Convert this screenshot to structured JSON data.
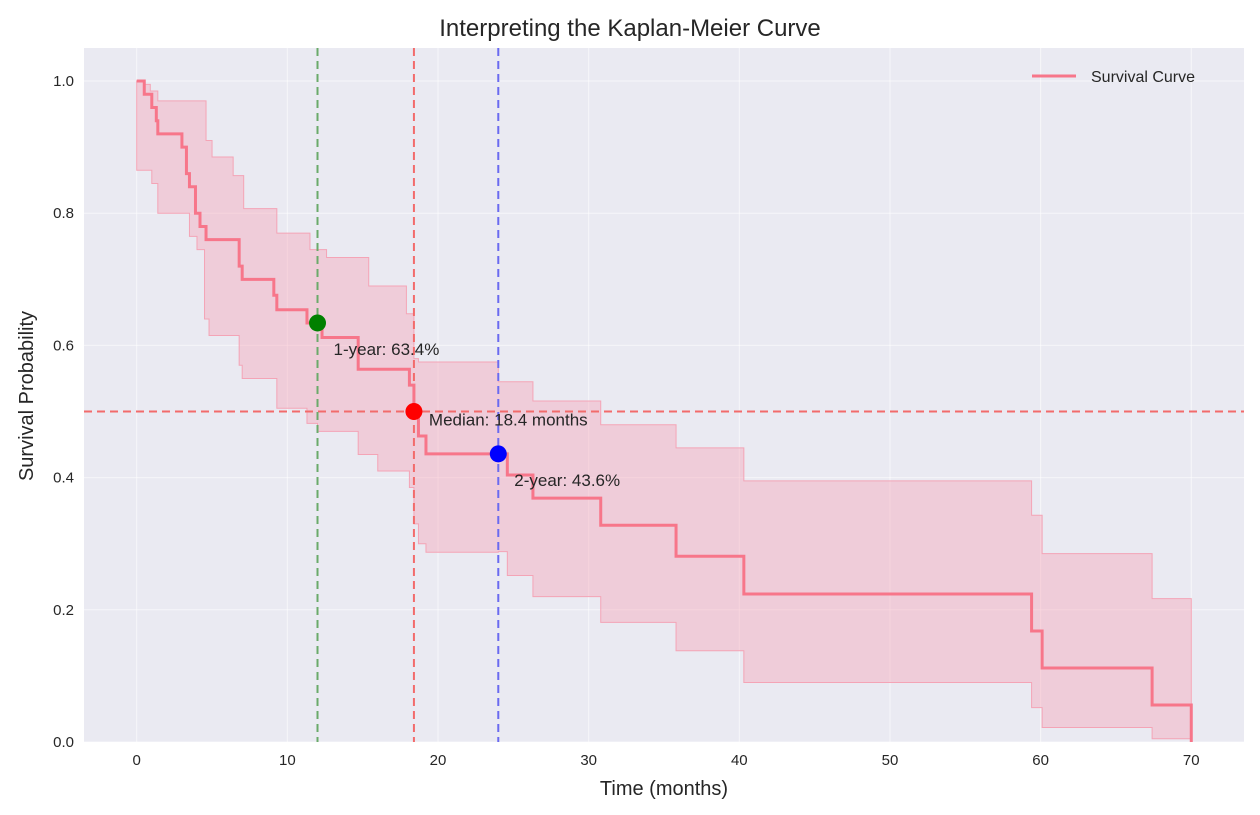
{
  "chart_data": {
    "type": "line",
    "subtype": "kaplan-meier-step",
    "title": "Interpreting the Kaplan-Meier Curve",
    "xlabel": "Time (months)",
    "ylabel": "Survival Probability",
    "xlim": [
      -3.5,
      73.5
    ],
    "ylim": [
      0.0,
      1.05
    ],
    "xticks": [
      0,
      10,
      20,
      30,
      40,
      50,
      60,
      70
    ],
    "yticks": [
      0.0,
      0.2,
      0.4,
      0.6,
      0.8,
      1.0
    ],
    "xtick_labels": [
      "0",
      "10",
      "20",
      "30",
      "40",
      "50",
      "60",
      "70"
    ],
    "ytick_labels": [
      "0.0",
      "0.2",
      "0.4",
      "0.6",
      "0.8",
      "1.0"
    ],
    "grid": true,
    "legend": {
      "position": "top-right",
      "entries": [
        {
          "label": "Survival Curve",
          "color": "#f7768a"
        }
      ]
    },
    "series": [
      {
        "name": "Survival Curve",
        "color": "#f7768a",
        "step": "post",
        "x": [
          0,
          0.5,
          1.0,
          1.3,
          1.4,
          3.0,
          3.3,
          3.5,
          3.9,
          4.2,
          4.6,
          6.8,
          7.0,
          9.1,
          9.3,
          11.3,
          12.0,
          12.3,
          14.7,
          18.1,
          18.4,
          18.7,
          19.2,
          24.0,
          24.6,
          26.3,
          30.8,
          35.8,
          40.3,
          59.4,
          60.1,
          67.4,
          70.0
        ],
        "y": [
          1.0,
          0.98,
          0.96,
          0.94,
          0.92,
          0.9,
          0.86,
          0.84,
          0.8,
          0.78,
          0.76,
          0.72,
          0.7,
          0.676,
          0.654,
          0.634,
          0.634,
          0.612,
          0.564,
          0.54,
          0.5,
          0.463,
          0.436,
          0.436,
          0.404,
          0.369,
          0.328,
          0.281,
          0.224,
          0.168,
          0.112,
          0.056,
          0.0
        ]
      }
    ],
    "confidence_band": {
      "color": "#f7768a",
      "upper": {
        "x": [
          0,
          0.5,
          0.9,
          1.4,
          4.6,
          5.0,
          6.4,
          7.1,
          9.3,
          11.5,
          12.6,
          15.4,
          17.9,
          18.4,
          18.7,
          24.0,
          26.3,
          30.8,
          35.8,
          40.3,
          59.4,
          60.1,
          67.4,
          70.0
        ],
        "y": [
          1.0,
          0.995,
          0.985,
          0.97,
          0.91,
          0.885,
          0.857,
          0.807,
          0.77,
          0.745,
          0.733,
          0.69,
          0.648,
          0.58,
          0.575,
          0.545,
          0.516,
          0.48,
          0.445,
          0.395,
          0.343,
          0.285,
          0.217,
          0.217
        ]
      },
      "lower": {
        "x": [
          0.5,
          1.0,
          1.4,
          3.5,
          4.0,
          4.5,
          4.8,
          6.8,
          7.0,
          9.3,
          11.3,
          12.0,
          14.7,
          16.0,
          18.1,
          18.4,
          18.7,
          19.2,
          24.0,
          24.6,
          26.3,
          30.8,
          35.8,
          40.3,
          59.4,
          60.1,
          67.4,
          70.0
        ],
        "y": [
          0.865,
          0.845,
          0.8,
          0.765,
          0.745,
          0.64,
          0.615,
          0.57,
          0.55,
          0.505,
          0.482,
          0.47,
          0.435,
          0.41,
          0.385,
          0.33,
          0.3,
          0.287,
          0.288,
          0.252,
          0.22,
          0.181,
          0.138,
          0.09,
          0.052,
          0.022,
          0.005,
          0.005
        ]
      }
    },
    "reference_lines": [
      {
        "orientation": "horizontal",
        "value": 0.5,
        "color": "#f26b6b",
        "style": "dashed"
      },
      {
        "orientation": "vertical",
        "value": 12,
        "color": "#6aaa6a",
        "style": "dashed"
      },
      {
        "orientation": "vertical",
        "value": 18.4,
        "color": "#f26b6b",
        "style": "dashed"
      },
      {
        "orientation": "vertical",
        "value": 24,
        "color": "#6a6af0",
        "style": "dashed"
      }
    ],
    "markers": [
      {
        "name": "one-year",
        "x": 12,
        "y": 0.634,
        "color": "#008000",
        "label": "1-year: 63.4%"
      },
      {
        "name": "median",
        "x": 18.4,
        "y": 0.5,
        "color": "#ff0000",
        "label": "Median: 18.4 months"
      },
      {
        "name": "two-year",
        "x": 24,
        "y": 0.436,
        "color": "#0000ff",
        "label": "2-year: 43.6%"
      }
    ],
    "background_color": "#eaeaf2"
  }
}
